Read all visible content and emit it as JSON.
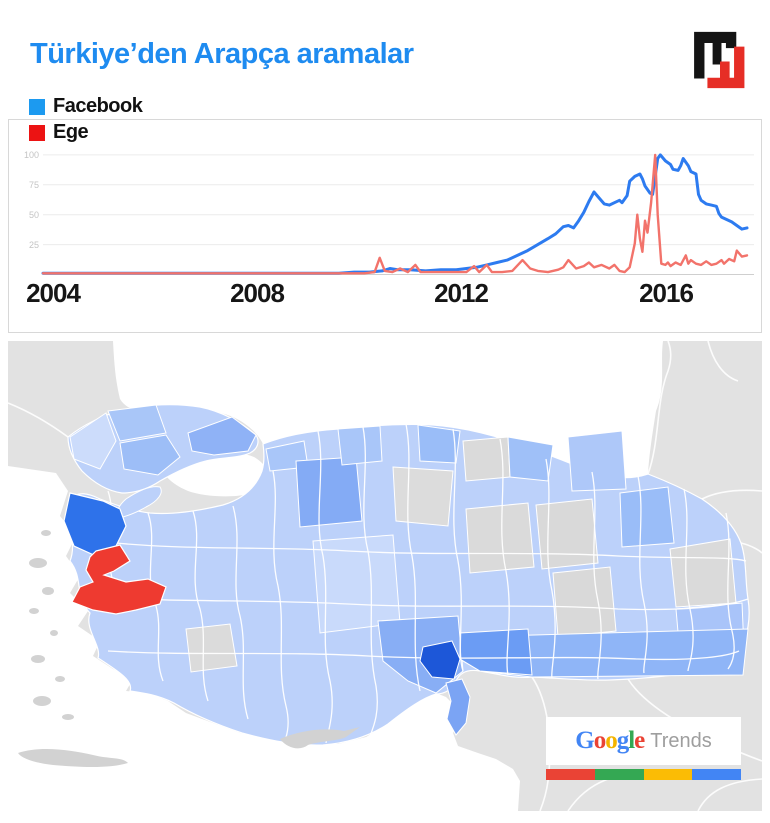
{
  "header": {
    "title": "Türkiye’den Arapça aramalar",
    "title_color": "#1e8bf0"
  },
  "legend": {
    "items": [
      {
        "label": "Facebook",
        "color": "#1c9af0"
      },
      {
        "label": "Ege",
        "color": "#ec1313"
      }
    ]
  },
  "chart_data": {
    "type": "line",
    "title": "",
    "x_axis": {
      "ticks": [
        "2004",
        "2008",
        "2012",
        "2016"
      ],
      "tick_years": [
        2004,
        2008,
        2012,
        2016
      ],
      "range": [
        2003.8,
        2017.6
      ]
    },
    "y_axis": {
      "ticks": [
        "100",
        "75",
        "50",
        "25"
      ],
      "tick_values": [
        100,
        75,
        50,
        25
      ],
      "range": [
        0,
        100
      ],
      "grid": true
    },
    "legend_position": "top-left",
    "series": [
      {
        "name": "Facebook",
        "color": "#2d7bf0",
        "points": [
          [
            2003.8,
            1
          ],
          [
            2005,
            1
          ],
          [
            2006,
            1
          ],
          [
            2007,
            1
          ],
          [
            2008,
            1
          ],
          [
            2009,
            1
          ],
          [
            2009.6,
            1
          ],
          [
            2009.9,
            2
          ],
          [
            2010.2,
            2
          ],
          [
            2010.45,
            3
          ],
          [
            2010.6,
            5
          ],
          [
            2010.75,
            4
          ],
          [
            2011,
            4
          ],
          [
            2011.3,
            3
          ],
          [
            2011.6,
            4
          ],
          [
            2011.9,
            4
          ],
          [
            2012.1,
            5
          ],
          [
            2012.3,
            6
          ],
          [
            2012.5,
            8
          ],
          [
            2012.7,
            10
          ],
          [
            2012.9,
            12
          ],
          [
            2013.1,
            16
          ],
          [
            2013.3,
            20
          ],
          [
            2013.5,
            25
          ],
          [
            2013.7,
            30
          ],
          [
            2013.85,
            34
          ],
          [
            2014,
            40
          ],
          [
            2014.1,
            41
          ],
          [
            2014.2,
            39
          ],
          [
            2014.3,
            45
          ],
          [
            2014.4,
            52
          ],
          [
            2014.5,
            61
          ],
          [
            2014.6,
            69
          ],
          [
            2014.7,
            64
          ],
          [
            2014.8,
            59
          ],
          [
            2014.9,
            58
          ],
          [
            2015,
            60
          ],
          [
            2015.1,
            62
          ],
          [
            2015.15,
            60
          ],
          [
            2015.25,
            66
          ],
          [
            2015.3,
            78
          ],
          [
            2015.4,
            82
          ],
          [
            2015.5,
            84
          ],
          [
            2015.55,
            80
          ],
          [
            2015.6,
            74
          ],
          [
            2015.7,
            68
          ],
          [
            2015.75,
            67
          ],
          [
            2015.85,
            97
          ],
          [
            2015.9,
            100
          ],
          [
            2016,
            95
          ],
          [
            2016.1,
            92
          ],
          [
            2016.15,
            88
          ],
          [
            2016.25,
            87
          ],
          [
            2016.3,
            91
          ],
          [
            2016.35,
            97
          ],
          [
            2016.45,
            91
          ],
          [
            2016.5,
            86
          ],
          [
            2016.6,
            84
          ],
          [
            2016.65,
            67
          ],
          [
            2016.7,
            62
          ],
          [
            2016.8,
            59
          ],
          [
            2016.9,
            58
          ],
          [
            2017,
            57
          ],
          [
            2017.05,
            51
          ],
          [
            2017.1,
            48
          ],
          [
            2017.2,
            46
          ],
          [
            2017.3,
            44
          ],
          [
            2017.4,
            41
          ],
          [
            2017.5,
            38
          ],
          [
            2017.6,
            39
          ]
        ]
      },
      {
        "name": "Ege",
        "color": "#f2736b",
        "points": [
          [
            2003.8,
            1
          ],
          [
            2005,
            1
          ],
          [
            2006,
            1
          ],
          [
            2007,
            1
          ],
          [
            2008,
            1
          ],
          [
            2009,
            1
          ],
          [
            2009.8,
            1
          ],
          [
            2010.1,
            1
          ],
          [
            2010.3,
            2
          ],
          [
            2010.4,
            14
          ],
          [
            2010.5,
            3
          ],
          [
            2010.65,
            2
          ],
          [
            2010.8,
            5
          ],
          [
            2010.95,
            2
          ],
          [
            2011.1,
            8
          ],
          [
            2011.2,
            2
          ],
          [
            2011.5,
            2
          ],
          [
            2011.8,
            2
          ],
          [
            2012.1,
            2
          ],
          [
            2012.25,
            7
          ],
          [
            2012.35,
            2
          ],
          [
            2012.5,
            8
          ],
          [
            2012.6,
            2
          ],
          [
            2012.8,
            2
          ],
          [
            2013,
            3
          ],
          [
            2013.2,
            12
          ],
          [
            2013.35,
            5
          ],
          [
            2013.5,
            3
          ],
          [
            2013.7,
            2
          ],
          [
            2013.9,
            4
          ],
          [
            2014,
            6
          ],
          [
            2014.1,
            12
          ],
          [
            2014.25,
            5
          ],
          [
            2014.4,
            7
          ],
          [
            2014.5,
            10
          ],
          [
            2014.6,
            6
          ],
          [
            2014.75,
            8
          ],
          [
            2014.9,
            5
          ],
          [
            2015,
            8
          ],
          [
            2015.1,
            3
          ],
          [
            2015.2,
            2
          ],
          [
            2015.3,
            6
          ],
          [
            2015.4,
            26
          ],
          [
            2015.45,
            50
          ],
          [
            2015.5,
            30
          ],
          [
            2015.55,
            19
          ],
          [
            2015.6,
            45
          ],
          [
            2015.65,
            35
          ],
          [
            2015.72,
            60
          ],
          [
            2015.8,
            100
          ],
          [
            2015.85,
            50
          ],
          [
            2015.92,
            9
          ],
          [
            2016,
            8
          ],
          [
            2016.05,
            10
          ],
          [
            2016.1,
            7
          ],
          [
            2016.2,
            10
          ],
          [
            2016.3,
            8
          ],
          [
            2016.4,
            16
          ],
          [
            2016.45,
            9
          ],
          [
            2016.5,
            12
          ],
          [
            2016.6,
            9
          ],
          [
            2016.7,
            8
          ],
          [
            2016.8,
            11
          ],
          [
            2016.9,
            8
          ],
          [
            2017,
            9
          ],
          [
            2017.1,
            12
          ],
          [
            2017.15,
            9
          ],
          [
            2017.25,
            13
          ],
          [
            2017.35,
            11
          ],
          [
            2017.4,
            20
          ],
          [
            2017.5,
            15
          ],
          [
            2017.6,
            16
          ]
        ]
      }
    ]
  },
  "map": {
    "type": "choropleth",
    "sea_color": "#ffffff",
    "neighbor_land_color": "#e2e2e2",
    "island_color": "#d2d2d2",
    "no_data_color": "#dadada",
    "base_color": "#bcd1fa",
    "red_region_color": "#ee3a30",
    "strong_blue_region_color": "#2e72ea",
    "dark_blue_region_color": "#1d57d8"
  },
  "google_trends": {
    "brand_letters": [
      {
        "ch": "G",
        "color": "#4285F4"
      },
      {
        "ch": "o",
        "color": "#EA4335"
      },
      {
        "ch": "o",
        "color": "#F4B400"
      },
      {
        "ch": "g",
        "color": "#4285F4"
      },
      {
        "ch": "l",
        "color": "#34A853"
      },
      {
        "ch": "e",
        "color": "#EA4335"
      }
    ],
    "suffix": "Trends",
    "bar_colors": [
      "#EA4335",
      "#34A853",
      "#FBBC05",
      "#4285F4"
    ]
  }
}
